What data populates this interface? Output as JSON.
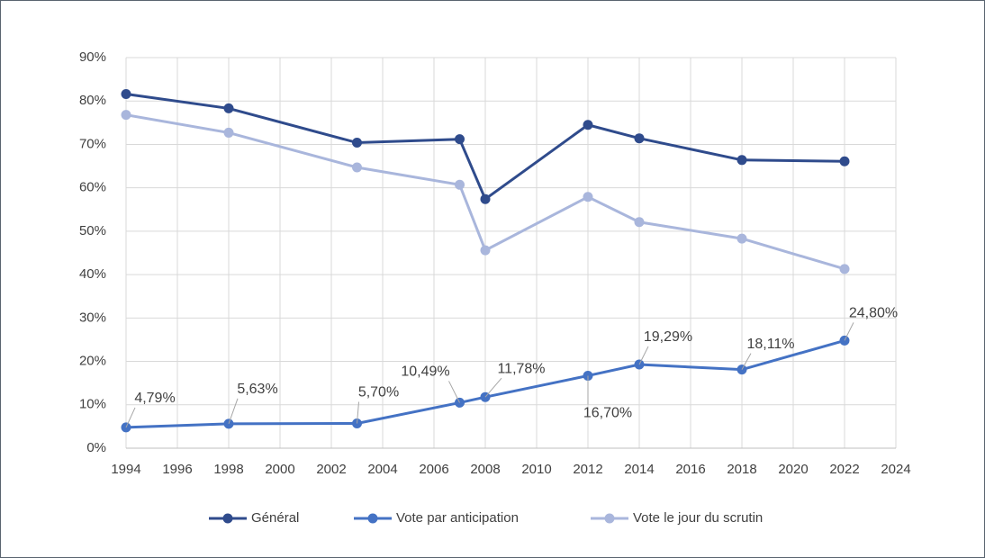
{
  "chart_data": {
    "type": "line",
    "x": [
      1994,
      1998,
      2003,
      2007,
      2008,
      2012,
      2014,
      2018,
      2022
    ],
    "series": [
      {
        "name": "Général",
        "color": "#2f4b8c",
        "values": [
          81.6,
          78.3,
          70.4,
          71.2,
          57.4,
          74.5,
          71.4,
          66.4,
          66.1
        ]
      },
      {
        "name": "Vote par anticipation",
        "color": "#4472c4",
        "values": [
          4.79,
          5.63,
          5.7,
          10.49,
          11.78,
          16.7,
          19.29,
          18.11,
          24.8
        ],
        "value_labels": [
          "4,79%",
          "5,63%",
          "5,70%",
          "10,49%",
          "11,78%",
          "16,70%",
          "19,29%",
          "18,11%",
          "24,80%"
        ]
      },
      {
        "name": "Vote le jour du scrutin",
        "color": "#a9b6dc",
        "values": [
          76.8,
          72.7,
          64.7,
          60.7,
          45.6,
          57.9,
          52.1,
          48.3,
          41.3
        ]
      }
    ],
    "xlim": [
      1994,
      2024
    ],
    "xticks": [
      1994,
      1996,
      1998,
      2000,
      2002,
      2004,
      2006,
      2008,
      2010,
      2012,
      2014,
      2016,
      2018,
      2020,
      2022,
      2024
    ],
    "ylim": [
      0,
      90
    ],
    "yticks": [
      {
        "value": 0,
        "label": "0%"
      },
      {
        "value": 10,
        "label": "10%"
      },
      {
        "value": 20,
        "label": "20%"
      },
      {
        "value": 30,
        "label": "30%"
      },
      {
        "value": 40,
        "label": "40%"
      },
      {
        "value": 50,
        "label": "50%"
      },
      {
        "value": 60,
        "label": "60%"
      },
      {
        "value": 70,
        "label": "70%"
      },
      {
        "value": 80,
        "label": "80%"
      },
      {
        "value": 90,
        "label": "90%"
      }
    ],
    "grid": true,
    "legend": "bottom"
  }
}
